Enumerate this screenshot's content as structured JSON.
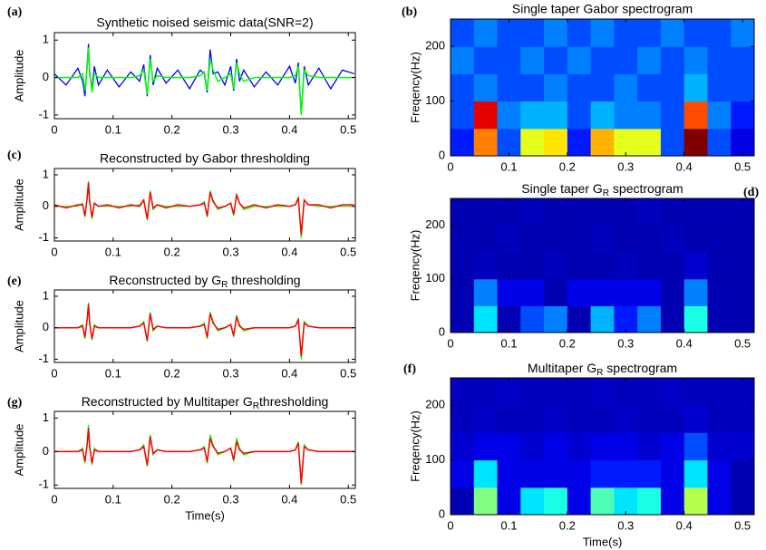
{
  "chart_data": [
    {
      "type": "line",
      "panel": "(a)",
      "title": "Synthetic noised seismic data(SNR=2)",
      "ylabel": "Amplitude",
      "x": [
        0,
        0.02,
        0.04,
        0.048,
        0.052,
        0.056,
        0.058,
        0.06,
        0.064,
        0.068,
        0.075,
        0.09,
        0.11,
        0.13,
        0.145,
        0.152,
        0.158,
        0.163,
        0.168,
        0.175,
        0.19,
        0.21,
        0.23,
        0.248,
        0.255,
        0.26,
        0.265,
        0.27,
        0.278,
        0.29,
        0.3,
        0.305,
        0.31,
        0.315,
        0.322,
        0.34,
        0.36,
        0.38,
        0.4,
        0.41,
        0.415,
        0.42,
        0.425,
        0.432,
        0.45,
        0.47,
        0.49,
        0.51
      ],
      "series": [
        {
          "color": "#0000ff",
          "values": [
            0.1,
            -0.2,
            0.25,
            -0.1,
            -0.5,
            0.4,
            0.9,
            0.1,
            -0.3,
            0.3,
            -0.2,
            0.2,
            -0.25,
            0.15,
            -0.1,
            0.35,
            -0.5,
            0.6,
            -0.2,
            0.25,
            -0.15,
            0.2,
            -0.3,
            0.2,
            0.1,
            -0.4,
            0.75,
            0.1,
            0.15,
            -0.2,
            0.3,
            -0.35,
            0.5,
            -0.1,
            0.2,
            -0.25,
            0.15,
            -0.2,
            0.3,
            -0.15,
            0.4,
            -1.0,
            0.3,
            -0.2,
            0.25,
            -0.3,
            0.2,
            0.1
          ]
        },
        {
          "color": "#00ff00",
          "values": [
            0,
            0,
            0,
            0.1,
            -0.35,
            0.3,
            0.8,
            0.2,
            -0.4,
            0.1,
            0,
            0,
            0,
            0,
            0.05,
            0.2,
            -0.45,
            0.5,
            -0.1,
            0.05,
            0,
            0,
            0,
            0.05,
            0.15,
            -0.35,
            0.5,
            0.2,
            -0.1,
            0,
            0.1,
            -0.3,
            0.4,
            0.1,
            -0.1,
            0,
            0,
            0,
            0,
            0.05,
            0.3,
            -1.0,
            0.2,
            0.05,
            0,
            0,
            0,
            0
          ]
        }
      ],
      "xlim": [
        0,
        0.512
      ],
      "ylim": [
        -1.1,
        1.2
      ],
      "xticks": [
        0,
        0.1,
        0.2,
        0.3,
        0.4,
        0.5
      ],
      "yticks": [
        -1,
        0,
        1
      ]
    },
    {
      "type": "heatmap",
      "panel": "(b)",
      "title": "Single taper Gabor spectrogram",
      "ylabel": "Freqency(Hz)",
      "colormap": "jet",
      "x": [
        0.02,
        0.06,
        0.1,
        0.14,
        0.18,
        0.22,
        0.26,
        0.3,
        0.34,
        0.38,
        0.42,
        0.46,
        0.5
      ],
      "y": [
        25,
        75,
        125,
        175,
        225
      ],
      "z": [
        [
          0.15,
          0.75,
          0.2,
          0.6,
          0.65,
          0.15,
          0.7,
          0.6,
          0.6,
          0.2,
          1.0,
          0.2,
          0.1
        ],
        [
          0.2,
          0.9,
          0.25,
          0.3,
          0.3,
          0.2,
          0.3,
          0.25,
          0.25,
          0.2,
          0.8,
          0.25,
          0.15
        ],
        [
          0.2,
          0.25,
          0.2,
          0.2,
          0.25,
          0.2,
          0.2,
          0.25,
          0.2,
          0.2,
          0.3,
          0.2,
          0.2
        ],
        [
          0.25,
          0.2,
          0.2,
          0.25,
          0.2,
          0.25,
          0.2,
          0.2,
          0.25,
          0.2,
          0.25,
          0.2,
          0.2
        ],
        [
          0.2,
          0.25,
          0.2,
          0.2,
          0.25,
          0.2,
          0.25,
          0.2,
          0.2,
          0.25,
          0.2,
          0.2,
          0.25
        ]
      ],
      "xlim": [
        0,
        0.52
      ],
      "ylim": [
        0,
        250
      ],
      "xticks": [
        0,
        0.1,
        0.2,
        0.3,
        0.4,
        0.5
      ],
      "yticks": [
        0,
        100,
        200
      ]
    },
    {
      "type": "line",
      "panel": "(c)",
      "title": "Reconstructed by Gabor thresholding",
      "ylabel": "Amplitude",
      "x": [
        0,
        0.02,
        0.04,
        0.048,
        0.052,
        0.056,
        0.058,
        0.06,
        0.064,
        0.068,
        0.075,
        0.09,
        0.11,
        0.13,
        0.145,
        0.152,
        0.158,
        0.163,
        0.168,
        0.175,
        0.19,
        0.21,
        0.23,
        0.248,
        0.255,
        0.26,
        0.265,
        0.27,
        0.278,
        0.29,
        0.3,
        0.305,
        0.31,
        0.315,
        0.322,
        0.34,
        0.36,
        0.38,
        0.4,
        0.41,
        0.415,
        0.42,
        0.425,
        0.432,
        0.45,
        0.47,
        0.49,
        0.51
      ],
      "series": [
        {
          "color": "#00ff00",
          "values": [
            0,
            0,
            0,
            0.1,
            -0.35,
            0.3,
            0.8,
            0.2,
            -0.4,
            0.1,
            0,
            0,
            0,
            0,
            0.05,
            0.2,
            -0.45,
            0.5,
            -0.1,
            0.05,
            0,
            0,
            0,
            0.05,
            0.15,
            -0.35,
            0.5,
            0.2,
            -0.1,
            0,
            0.1,
            -0.3,
            0.4,
            0.1,
            -0.1,
            0,
            0,
            0,
            0,
            0.05,
            0.3,
            -1.0,
            0.2,
            0.05,
            0,
            0,
            0,
            0
          ]
        },
        {
          "color": "#ff0000",
          "values": [
            0.05,
            -0.05,
            0.05,
            0.05,
            -0.3,
            0.3,
            0.75,
            0.15,
            -0.35,
            0.1,
            0,
            0.05,
            -0.05,
            0.05,
            0,
            0.2,
            -0.4,
            0.45,
            -0.05,
            0.05,
            -0.05,
            0.05,
            0,
            0.05,
            0.1,
            -0.3,
            0.45,
            0.15,
            -0.05,
            0,
            0.1,
            -0.25,
            0.35,
            0.1,
            -0.05,
            0.05,
            -0.05,
            0.05,
            0,
            0.05,
            0.25,
            -0.9,
            0.2,
            0.05,
            0.05,
            -0.05,
            0.05,
            0.05
          ]
        }
      ],
      "xlim": [
        0,
        0.512
      ],
      "ylim": [
        -1.1,
        1.2
      ],
      "xticks": [
        0,
        0.1,
        0.2,
        0.3,
        0.4,
        0.5
      ],
      "yticks": [
        -1,
        0,
        1
      ]
    },
    {
      "type": "heatmap",
      "panel": "(d)",
      "title": [
        "Single taper G",
        "R",
        " spectrogram"
      ],
      "ylabel": "Freqency(Hz)",
      "colormap": "jet",
      "x": [
        0.02,
        0.06,
        0.1,
        0.14,
        0.18,
        0.22,
        0.26,
        0.3,
        0.34,
        0.38,
        0.42,
        0.46,
        0.5
      ],
      "y": [
        25,
        75,
        125,
        175,
        225
      ],
      "z": [
        [
          0.05,
          0.35,
          0.05,
          0.2,
          0.25,
          0.05,
          0.3,
          0.15,
          0.25,
          0.05,
          0.4,
          0.05,
          0.05
        ],
        [
          0.05,
          0.25,
          0.1,
          0.1,
          0.05,
          0.1,
          0.1,
          0.1,
          0.1,
          0.05,
          0.25,
          0.05,
          0.05
        ],
        [
          0.05,
          0.06,
          0.05,
          0.05,
          0.06,
          0.05,
          0.05,
          0.06,
          0.05,
          0.05,
          0.08,
          0.05,
          0.05
        ],
        [
          0.05,
          0.05,
          0.06,
          0.05,
          0.05,
          0.05,
          0.06,
          0.05,
          0.05,
          0.06,
          0.05,
          0.05,
          0.05
        ],
        [
          0.05,
          0.05,
          0.05,
          0.06,
          0.05,
          0.05,
          0.05,
          0.05,
          0.06,
          0.05,
          0.05,
          0.05,
          0.05
        ]
      ],
      "xlim": [
        0,
        0.52
      ],
      "ylim": [
        0,
        250
      ],
      "xticks": [
        0,
        0.1,
        0.2,
        0.3,
        0.4,
        0.5
      ],
      "yticks": [
        0,
        100,
        200
      ]
    },
    {
      "type": "line",
      "panel": "(e)",
      "title": [
        "Reconstructed by G",
        "R",
        " thresholding"
      ],
      "ylabel": "Amplitude",
      "x": [
        0,
        0.02,
        0.04,
        0.048,
        0.052,
        0.056,
        0.058,
        0.06,
        0.064,
        0.068,
        0.075,
        0.09,
        0.11,
        0.13,
        0.145,
        0.152,
        0.158,
        0.163,
        0.168,
        0.175,
        0.19,
        0.21,
        0.23,
        0.248,
        0.255,
        0.26,
        0.265,
        0.27,
        0.278,
        0.29,
        0.3,
        0.305,
        0.31,
        0.315,
        0.322,
        0.34,
        0.36,
        0.38,
        0.4,
        0.41,
        0.415,
        0.42,
        0.425,
        0.432,
        0.45,
        0.47,
        0.49,
        0.51
      ],
      "series": [
        {
          "color": "#00ff00",
          "values": [
            0,
            0,
            0,
            0.1,
            -0.35,
            0.3,
            0.8,
            0.2,
            -0.4,
            0.1,
            0,
            0,
            0,
            0,
            0.05,
            0.2,
            -0.45,
            0.5,
            -0.1,
            0.05,
            0,
            0,
            0,
            0.05,
            0.15,
            -0.35,
            0.5,
            0.2,
            -0.1,
            0,
            0.1,
            -0.3,
            0.4,
            0.1,
            -0.1,
            0,
            0,
            0,
            0,
            0.05,
            0.3,
            -1.0,
            0.2,
            0.05,
            0,
            0,
            0,
            0
          ]
        },
        {
          "color": "#ff0000",
          "values": [
            0,
            0,
            0,
            0.05,
            -0.3,
            0.3,
            0.75,
            0.15,
            -0.35,
            0.05,
            0,
            0,
            0,
            0,
            0.05,
            0.15,
            -0.4,
            0.45,
            -0.05,
            0.05,
            0,
            0,
            0,
            0.05,
            0.1,
            -0.3,
            0.45,
            0.15,
            -0.05,
            0,
            0.1,
            -0.25,
            0.35,
            0.05,
            -0.05,
            0,
            0,
            0,
            0,
            0.05,
            0.25,
            -0.9,
            0.15,
            0.05,
            0,
            0,
            0,
            0
          ]
        }
      ],
      "xlim": [
        0,
        0.512
      ],
      "ylim": [
        -1.1,
        1.2
      ],
      "xticks": [
        0,
        0.1,
        0.2,
        0.3,
        0.4,
        0.5
      ],
      "yticks": [
        -1,
        0,
        1
      ]
    },
    {
      "type": "heatmap",
      "panel": "(f)",
      "title": [
        "Multitaper G",
        "R",
        " spectrogram"
      ],
      "ylabel": "Freqency(Hz)",
      "xlabel": "Time(s)",
      "colormap": "jet",
      "x": [
        0.02,
        0.06,
        0.1,
        0.14,
        0.18,
        0.22,
        0.26,
        0.3,
        0.34,
        0.38,
        0.42,
        0.46,
        0.5
      ],
      "y": [
        25,
        75,
        125,
        175,
        225
      ],
      "z": [
        [
          0.05,
          0.5,
          0.1,
          0.35,
          0.4,
          0.1,
          0.45,
          0.35,
          0.4,
          0.1,
          0.55,
          0.1,
          0.05
        ],
        [
          0.1,
          0.35,
          0.1,
          0.1,
          0.1,
          0.1,
          0.15,
          0.15,
          0.15,
          0.1,
          0.35,
          0.1,
          0.05
        ],
        [
          0.08,
          0.1,
          0.1,
          0.08,
          0.1,
          0.08,
          0.1,
          0.1,
          0.08,
          0.1,
          0.2,
          0.08,
          0.08
        ],
        [
          0.06,
          0.07,
          0.06,
          0.06,
          0.07,
          0.06,
          0.06,
          0.07,
          0.06,
          0.06,
          0.08,
          0.06,
          0.06
        ],
        [
          0.06,
          0.06,
          0.07,
          0.06,
          0.06,
          0.06,
          0.07,
          0.06,
          0.06,
          0.07,
          0.06,
          0.06,
          0.06
        ]
      ],
      "xlim": [
        0,
        0.52
      ],
      "ylim": [
        0,
        250
      ],
      "xticks": [
        0,
        0.1,
        0.2,
        0.3,
        0.4,
        0.5
      ],
      "yticks": [
        0,
        100,
        200
      ]
    },
    {
      "type": "line",
      "panel": "(g)",
      "title": [
        "Reconstructed by Multitaper G",
        "R",
        "thresholding"
      ],
      "ylabel": "Amplitude",
      "xlabel": "Time(s)",
      "x": [
        0,
        0.02,
        0.04,
        0.048,
        0.052,
        0.056,
        0.058,
        0.06,
        0.064,
        0.068,
        0.075,
        0.09,
        0.11,
        0.13,
        0.145,
        0.152,
        0.158,
        0.163,
        0.168,
        0.175,
        0.19,
        0.21,
        0.23,
        0.248,
        0.255,
        0.26,
        0.265,
        0.27,
        0.278,
        0.29,
        0.3,
        0.305,
        0.31,
        0.315,
        0.322,
        0.34,
        0.36,
        0.38,
        0.4,
        0.41,
        0.415,
        0.42,
        0.425,
        0.432,
        0.45,
        0.47,
        0.49,
        0.51
      ],
      "series": [
        {
          "color": "#00ff00",
          "values": [
            0,
            0,
            0,
            0.1,
            -0.35,
            0.3,
            0.8,
            0.2,
            -0.4,
            0.1,
            0,
            0,
            0,
            0,
            0.05,
            0.2,
            -0.45,
            0.5,
            -0.1,
            0.05,
            0,
            0,
            0,
            0.05,
            0.15,
            -0.35,
            0.5,
            0.2,
            -0.1,
            0,
            0.1,
            -0.3,
            0.4,
            0.1,
            -0.1,
            0,
            0,
            0,
            0,
            0.05,
            0.3,
            -1.0,
            0.2,
            0.05,
            0,
            0,
            0,
            0
          ]
        },
        {
          "color": "#ff0000",
          "values": [
            0,
            0,
            0,
            0.05,
            -0.3,
            0.25,
            0.7,
            0.15,
            -0.35,
            0.05,
            0,
            0,
            0,
            0,
            0.05,
            0.15,
            -0.4,
            0.45,
            -0.05,
            0.05,
            0,
            0,
            0,
            0.05,
            0.1,
            -0.3,
            0.4,
            0.15,
            -0.05,
            0,
            0.1,
            -0.25,
            0.3,
            0.05,
            -0.05,
            0,
            0,
            0,
            0,
            0.05,
            0.25,
            -0.95,
            0.15,
            0.05,
            0,
            0,
            0,
            0
          ]
        }
      ],
      "xlim": [
        0,
        0.512
      ],
      "ylim": [
        -1.1,
        1.2
      ],
      "xticks": [
        0,
        0.1,
        0.2,
        0.3,
        0.4,
        0.5
      ],
      "yticks": [
        -1,
        0,
        1
      ]
    }
  ]
}
